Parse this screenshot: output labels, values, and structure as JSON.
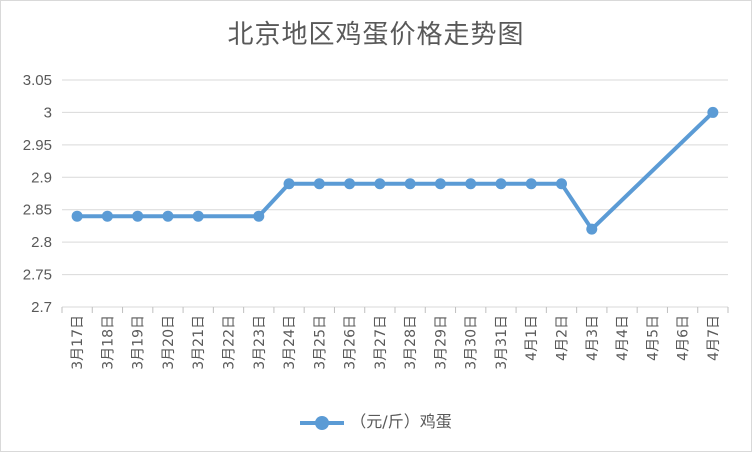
{
  "chart_data": {
    "type": "line",
    "title": "北京地区鸡蛋价格走势图",
    "xlabel": "",
    "ylabel": "",
    "ylim": [
      2.7,
      3.05
    ],
    "yticks": [
      "3.05",
      "3",
      "2.95",
      "2.9",
      "2.85",
      "2.8",
      "2.75",
      "2.7"
    ],
    "grid": true,
    "legend_position": "bottom",
    "categories": [
      "3月17日",
      "3月18日",
      "3月19日",
      "3月20日",
      "3月21日",
      "3月22日",
      "3月23日",
      "3月24日",
      "3月25日",
      "3月26日",
      "3月27日",
      "3月28日",
      "3月29日",
      "3月30日",
      "3月31日",
      "4月1日",
      "4月2日",
      "4月3日",
      "4月4日",
      "4月5日",
      "4月6日",
      "4月7日"
    ],
    "series": [
      {
        "name": "（元/斤）鸡蛋",
        "color": "#5b9bd5",
        "values": [
          2.84,
          2.84,
          2.84,
          2.84,
          2.84,
          null,
          2.84,
          2.89,
          2.89,
          2.89,
          2.89,
          2.89,
          2.89,
          2.89,
          2.89,
          2.89,
          2.89,
          2.82,
          null,
          null,
          null,
          3.0
        ]
      }
    ]
  }
}
